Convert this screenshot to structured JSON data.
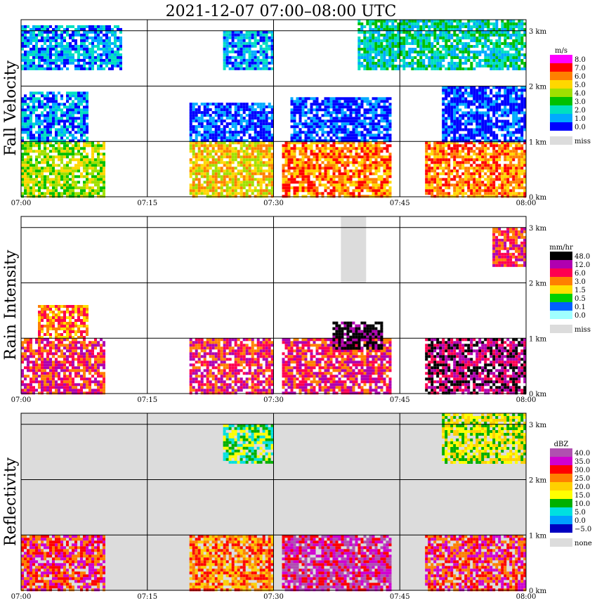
{
  "title": "2021-12-07   07:00–08:00 UTC",
  "colors": {
    "grid_line": "#000000",
    "background": "#ffffff",
    "missing": "#dcdcdc"
  },
  "chart_data": [
    {
      "type": "heatmap",
      "ylabel": "Fall Velocity",
      "x_ticks": [
        "07:00",
        "07:15",
        "07:30",
        "07:45",
        "08:00"
      ],
      "y_ticks": [
        "0 km",
        "1 km",
        "2 km",
        "3 km"
      ],
      "xlim_minutes": [
        0,
        60
      ],
      "ylim_km": [
        0,
        3.2
      ],
      "legend": {
        "unit": "m/s",
        "levels": [
          "8.0",
          "7.0",
          "6.0",
          "5.0",
          "4.0",
          "3.0",
          "2.0",
          "1.0",
          "0.0"
        ],
        "colors": [
          "#ff00ff",
          "#ff0000",
          "#ff7f00",
          "#ffd700",
          "#a0e000",
          "#00c000",
          "#00e0c0",
          "#00aaff",
          "#0000ff"
        ],
        "missing_label": "miss"
      },
      "bands": [
        {
          "t0": 0.0,
          "t1": 10.0,
          "h0": 0.0,
          "h1": 1.0,
          "level": 4
        },
        {
          "t0": 0.0,
          "t1": 8.0,
          "h0": 1.0,
          "h1": 1.9,
          "level": 7
        },
        {
          "t0": 20.0,
          "t1": 30.0,
          "h0": 0.0,
          "h1": 1.0,
          "level": 3
        },
        {
          "t0": 20.0,
          "t1": 30.0,
          "h0": 1.0,
          "h1": 1.7,
          "level": 8
        },
        {
          "t0": 31.0,
          "t1": 44.0,
          "h0": 0.0,
          "h1": 1.0,
          "level": 2
        },
        {
          "t0": 32.0,
          "t1": 44.0,
          "h0": 1.0,
          "h1": 1.8,
          "level": 8
        },
        {
          "t0": 48.0,
          "t1": 60.0,
          "h0": 0.0,
          "h1": 1.0,
          "level": 2
        },
        {
          "t0": 50.0,
          "t1": 60.0,
          "h0": 1.0,
          "h1": 2.0,
          "level": 8
        },
        {
          "t0": 0.0,
          "t1": 12.0,
          "h0": 2.3,
          "h1": 3.1,
          "level": 7
        },
        {
          "t0": 24.0,
          "t1": 30.0,
          "h0": 2.3,
          "h1": 3.0,
          "level": 7
        },
        {
          "t0": 40.0,
          "t1": 60.0,
          "h0": 2.3,
          "h1": 3.2,
          "level": 6
        }
      ]
    },
    {
      "type": "heatmap",
      "ylabel": "Rain Intensity",
      "x_ticks": [
        "07:00",
        "07:15",
        "07:30",
        "07:45",
        "08:00"
      ],
      "y_ticks": [
        "0 km",
        "1 km",
        "2 km",
        "3 km"
      ],
      "xlim_minutes": [
        0,
        60
      ],
      "ylim_km": [
        0,
        3.2
      ],
      "legend": {
        "unit": "mm/hr",
        "levels": [
          "48.0",
          "12.0",
          "6.0",
          "3.0",
          "1.5",
          "0.5",
          "0.1",
          "0.0"
        ],
        "colors": [
          "#000000",
          "#b000b0",
          "#ff0050",
          "#ff8000",
          "#ffe000",
          "#00d000",
          "#0060ff",
          "#a0ffff"
        ],
        "missing_label": "miss"
      },
      "bands": [
        {
          "t0": 0.0,
          "t1": 10.0,
          "h0": 0.0,
          "h1": 1.0,
          "level": 2
        },
        {
          "t0": 2.0,
          "t1": 8.0,
          "h0": 1.0,
          "h1": 1.6,
          "level": 3
        },
        {
          "t0": 20.0,
          "t1": 30.0,
          "h0": 0.0,
          "h1": 1.0,
          "level": 2
        },
        {
          "t0": 31.0,
          "t1": 44.0,
          "h0": 0.0,
          "h1": 1.0,
          "level": 2
        },
        {
          "t0": 37.0,
          "t1": 43.0,
          "h0": 0.8,
          "h1": 1.3,
          "level": 0
        },
        {
          "t0": 48.0,
          "t1": 60.0,
          "h0": 0.0,
          "h1": 1.0,
          "level": 1
        },
        {
          "t0": 56.0,
          "t1": 60.0,
          "h0": 2.3,
          "h1": 3.0,
          "level": 2
        },
        {
          "t0": 38.0,
          "t1": 41.0,
          "h0": 2.0,
          "h1": 3.2,
          "level": -1
        }
      ]
    },
    {
      "type": "heatmap",
      "ylabel": "Reflectivity",
      "x_ticks": [
        "07:00",
        "07:15",
        "07:30",
        "07:45",
        "08:00"
      ],
      "y_ticks": [
        "0 km",
        "1 km",
        "2 km",
        "3 km"
      ],
      "xlim_minutes": [
        0,
        60
      ],
      "ylim_km": [
        0,
        3.2
      ],
      "legend": {
        "unit": "dBZ",
        "levels": [
          "40.0",
          "35.0",
          "30.0",
          "25.0",
          "20.0",
          "15.0",
          "10.0",
          "5.0",
          "0.0",
          "−5.0"
        ],
        "colors": [
          "#b050b0",
          "#d000d0",
          "#ff0000",
          "#ff8000",
          "#ffd000",
          "#ffff00",
          "#00b000",
          "#00e0e0",
          "#00a0ff",
          "#0000c0"
        ],
        "missing_label": "none"
      },
      "bands": [
        {
          "t0": 0.0,
          "t1": 10.0,
          "h0": 0.0,
          "h1": 1.0,
          "level": 2
        },
        {
          "t0": 20.0,
          "t1": 30.0,
          "h0": 0.0,
          "h1": 1.0,
          "level": 3
        },
        {
          "t0": 31.0,
          "t1": 44.0,
          "h0": 0.0,
          "h1": 1.0,
          "level": 1
        },
        {
          "t0": 48.0,
          "t1": 60.0,
          "h0": 0.0,
          "h1": 1.0,
          "level": 2
        },
        {
          "t0": 24.0,
          "t1": 30.0,
          "h0": 2.3,
          "h1": 3.0,
          "level": 6
        },
        {
          "t0": 50.0,
          "t1": 60.0,
          "h0": 2.3,
          "h1": 3.2,
          "level": 5
        }
      ]
    }
  ]
}
